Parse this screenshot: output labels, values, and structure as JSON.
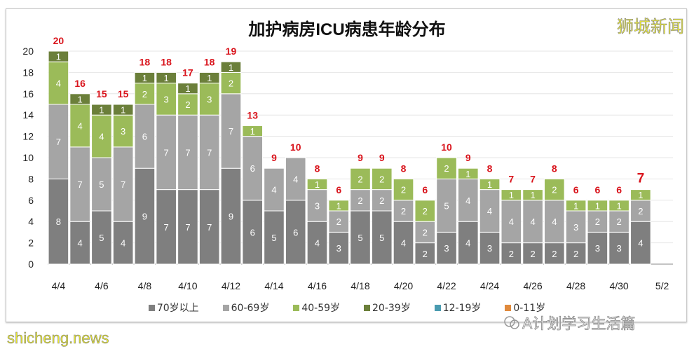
{
  "chart_data": {
    "type": "bar",
    "stacked": true,
    "title": "加护病房ICU病患年龄分布",
    "categories": [
      "4/4",
      "4/5",
      "4/6",
      "4/7",
      "4/8",
      "4/9",
      "4/10",
      "4/11",
      "4/12",
      "4/13",
      "4/14",
      "4/15",
      "4/16",
      "4/17",
      "4/18",
      "4/19",
      "4/20",
      "4/21",
      "4/22",
      "4/23",
      "4/24",
      "4/25",
      "4/26",
      "4/27",
      "4/28",
      "4/29",
      "4/30",
      "5/1",
      "5/2"
    ],
    "x_tick_labels": [
      "4/4",
      "4/6",
      "4/8",
      "4/10",
      "4/12",
      "4/14",
      "4/16",
      "4/18",
      "4/20",
      "4/22",
      "4/24",
      "4/26",
      "4/28",
      "4/30",
      "5/2"
    ],
    "ylim": [
      0,
      20
    ],
    "y_ticks": [
      0,
      2,
      4,
      6,
      8,
      10,
      12,
      14,
      16,
      18,
      20
    ],
    "grid": true,
    "legend_position": "bottom",
    "series": [
      {
        "name": "70岁以上",
        "color": "#7f7f7f",
        "values": [
          8,
          4,
          5,
          4,
          9,
          7,
          7,
          7,
          9,
          6,
          5,
          6,
          4,
          3,
          5,
          5,
          4,
          2,
          3,
          4,
          3,
          2,
          2,
          2,
          2,
          3,
          3,
          4,
          null
        ]
      },
      {
        "name": "60-69岁",
        "color": "#a5a5a5",
        "values": [
          7,
          7,
          5,
          7,
          6,
          7,
          7,
          7,
          7,
          6,
          4,
          4,
          3,
          2,
          2,
          2,
          2,
          2,
          5,
          4,
          4,
          4,
          4,
          4,
          3,
          2,
          2,
          2,
          null
        ]
      },
      {
        "name": "40-59岁",
        "color": "#9bbb59",
        "values": [
          4,
          4,
          4,
          3,
          2,
          3,
          2,
          3,
          2,
          1,
          0,
          0,
          1,
          1,
          2,
          2,
          2,
          2,
          2,
          1,
          1,
          1,
          1,
          2,
          1,
          1,
          1,
          1,
          null
        ]
      },
      {
        "name": "20-39岁",
        "color": "#6b7f3a",
        "values": [
          1,
          1,
          1,
          1,
          1,
          1,
          1,
          1,
          1,
          0,
          0,
          0,
          0,
          0,
          0,
          0,
          0,
          0,
          0,
          0,
          0,
          0,
          0,
          0,
          0,
          0,
          0,
          0,
          null
        ]
      },
      {
        "name": "12-19岁",
        "color": "#4a9bb0",
        "values": [
          0,
          0,
          0,
          0,
          0,
          0,
          0,
          0,
          0,
          0,
          0,
          0,
          0,
          0,
          0,
          0,
          0,
          0,
          0,
          0,
          0,
          0,
          0,
          0,
          0,
          0,
          0,
          0,
          null
        ]
      },
      {
        "name": "0-11岁",
        "color": "#e08a3c",
        "values": [
          0,
          0,
          0,
          0,
          0,
          0,
          0,
          0,
          0,
          0,
          0,
          0,
          0,
          0,
          0,
          0,
          0,
          0,
          0,
          0,
          0,
          0,
          0,
          0,
          0,
          0,
          0,
          0,
          null
        ]
      }
    ],
    "totals": [
      20,
      16,
      15,
      15,
      18,
      18,
      17,
      18,
      19,
      13,
      9,
      10,
      8,
      6,
      9,
      9,
      8,
      6,
      10,
      9,
      8,
      7,
      7,
      8,
      6,
      6,
      6,
      7,
      null
    ],
    "total_label_color": "#d9141c"
  },
  "watermarks": {
    "top_right": "狮城新闻",
    "bottom_left": "shicheng.news",
    "wechat": "A计划学习生活篇"
  }
}
